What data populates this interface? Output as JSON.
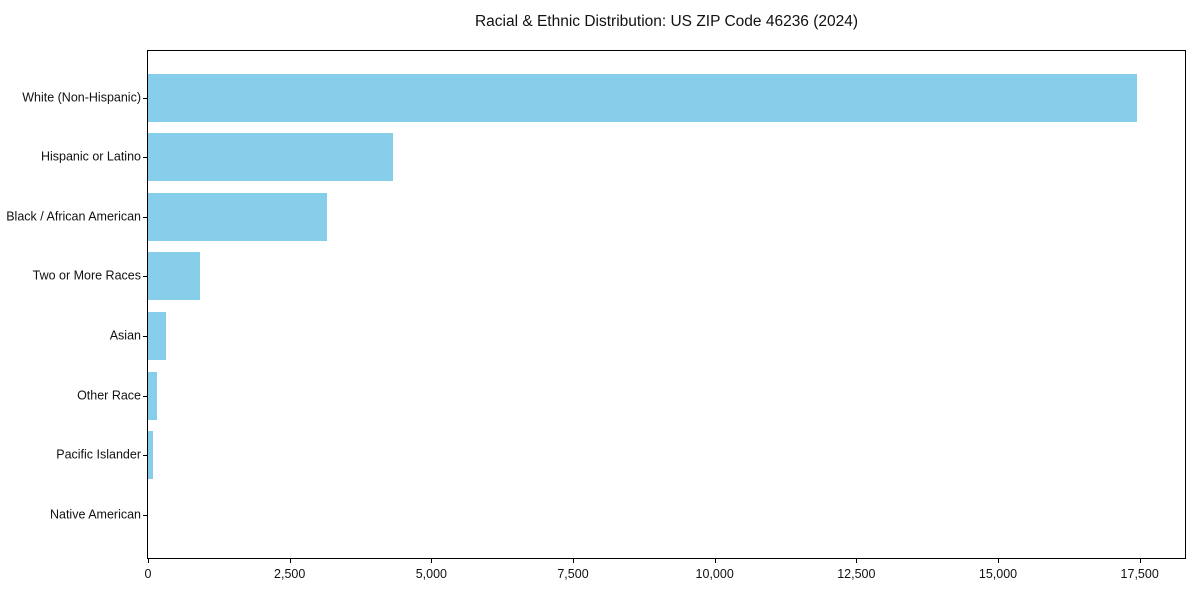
{
  "chart_data": {
    "type": "bar",
    "orientation": "horizontal",
    "title": "Racial & Ethnic Distribution: US ZIP Code 46236 (2024)",
    "categories": [
      "White (Non-Hispanic)",
      "Hispanic or Latino",
      "Black / African American",
      "Two or More Races",
      "Asian",
      "Other Race",
      "Pacific Islander",
      "Native American"
    ],
    "values": [
      17460,
      4330,
      3160,
      910,
      320,
      160,
      90,
      0
    ],
    "xlabel": "",
    "ylabel": "",
    "xlim": [
      0,
      18300
    ],
    "x_ticks": [
      0,
      2500,
      5000,
      7500,
      10000,
      12500,
      15000,
      17500
    ],
    "x_tick_labels": [
      "0",
      "2,500",
      "5,000",
      "7,500",
      "10,000",
      "12,500",
      "15,000",
      "17,500"
    ],
    "grid": false,
    "legend": null,
    "bar_color": "#87ceeb"
  },
  "colors": {
    "bar": "#87ceeb",
    "text": "#111111",
    "spine": "#000000",
    "background": "#ffffff"
  }
}
